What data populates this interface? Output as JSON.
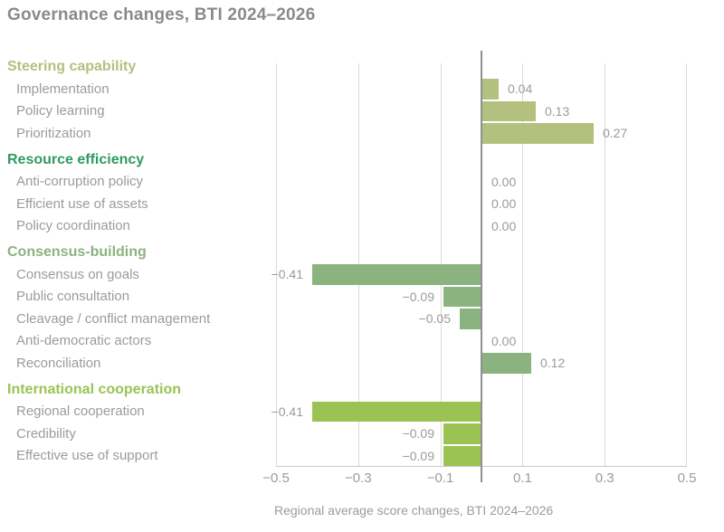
{
  "chart_data": {
    "type": "bar",
    "orientation": "horizontal",
    "title": "Governance changes, BTI 2024–2026",
    "xlabel": "Regional average score changes, BTI 2024–2026",
    "xlim": [
      -0.5,
      0.5
    ],
    "grid": true,
    "x_tick_labels": [
      "−0.5",
      "−0.3",
      "−0.1",
      "0.1",
      "0.3",
      "0.5"
    ],
    "colors": {
      "title": "#8a8a8a",
      "text_muted": "#9b9b9b",
      "gridline": "#d9d9d9",
      "axis_line": "#c9c9c9",
      "zero_line": "#8f8f8f"
    },
    "groups": [
      {
        "name": "Steering capability",
        "color": "#b4c17e",
        "items": [
          {
            "label": "Implementation",
            "value": 0.04,
            "display": "0.04"
          },
          {
            "label": "Policy learning",
            "value": 0.13,
            "display": "0.13"
          },
          {
            "label": "Prioritization",
            "value": 0.27,
            "display": "0.27"
          }
        ]
      },
      {
        "name": "Resource efficiency",
        "color": "#2f9a64",
        "items": [
          {
            "label": "Anti-corruption policy",
            "value": 0,
            "display": "0.00"
          },
          {
            "label": "Efficient use of assets",
            "value": 0,
            "display": "0.00"
          },
          {
            "label": "Policy coordination",
            "value": 0,
            "display": "0.00"
          }
        ]
      },
      {
        "name": "Consensus-building",
        "color": "#8ab380",
        "items": [
          {
            "label": "Consensus on goals",
            "value": -0.41,
            "display": "−0.41"
          },
          {
            "label": "Public consultation",
            "value": -0.09,
            "display": "−0.09"
          },
          {
            "label": "Cleavage / conflict management",
            "value": -0.05,
            "display": "−0.05"
          },
          {
            "label": "Anti-democratic actors",
            "value": 0,
            "display": "0.00"
          },
          {
            "label": "Reconciliation",
            "value": 0.12,
            "display": "0.12"
          }
        ]
      },
      {
        "name": "International cooperation",
        "color": "#9bc353",
        "items": [
          {
            "label": "Regional cooperation",
            "value": -0.41,
            "display": "−0.41"
          },
          {
            "label": "Credibility",
            "value": -0.09,
            "display": "−0.09"
          },
          {
            "label": "Effective use of support",
            "value": -0.09,
            "display": "−0.09"
          }
        ]
      }
    ]
  }
}
